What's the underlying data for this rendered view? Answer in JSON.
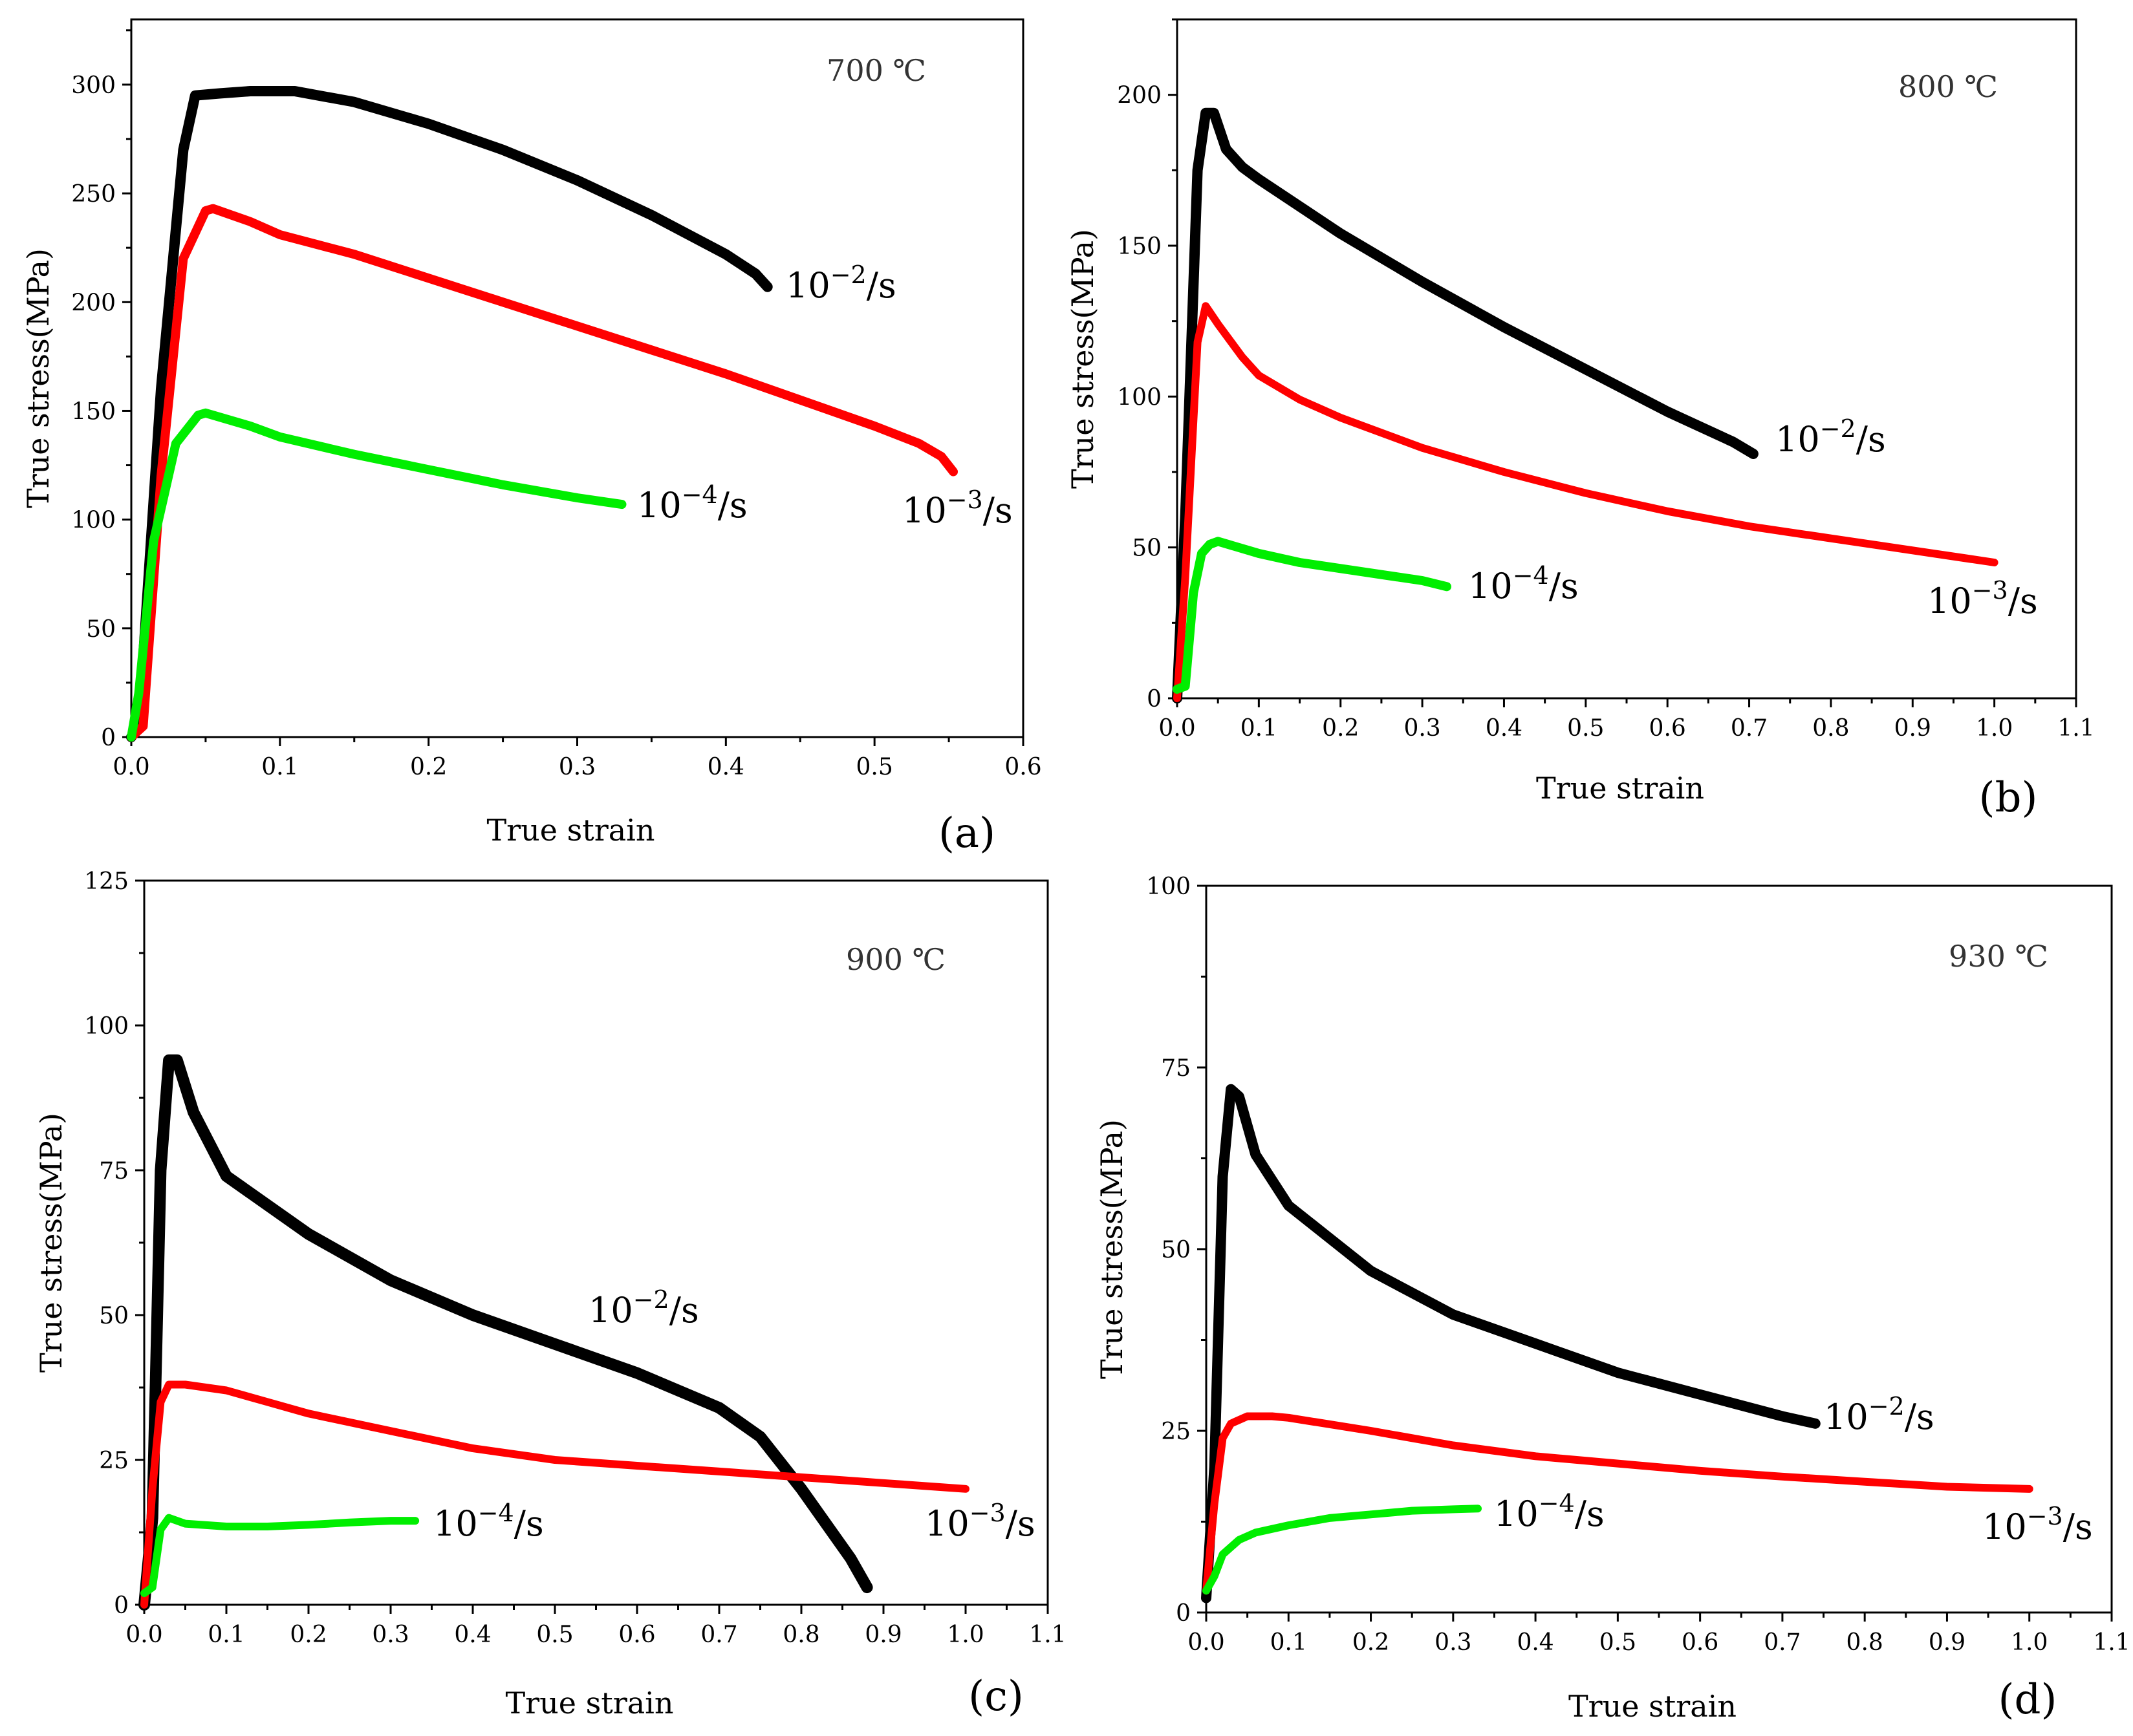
{
  "chart_data": [
    {
      "type": "line",
      "panel_letter": "(a)",
      "temperature_label": "700 ℃",
      "xlabel": "True strain",
      "ylabel": "True stress(MPa)",
      "xlim": [
        0,
        0.6
      ],
      "ylim": [
        0,
        330
      ],
      "xticks": [
        "0.0",
        "0.1",
        "0.2",
        "0.3",
        "0.4",
        "0.5",
        "0.6"
      ],
      "yticks": [
        "0",
        "50",
        "100",
        "150",
        "200",
        "250",
        "300"
      ],
      "series": [
        {
          "label": "10⁻²/s",
          "color": "#000000",
          "x": [
            0,
            0.005,
            0.02,
            0.035,
            0.043,
            0.06,
            0.08,
            0.11,
            0.15,
            0.2,
            0.25,
            0.3,
            0.35,
            0.4,
            0.42,
            0.428
          ],
          "y": [
            0,
            5,
            160,
            270,
            295,
            296,
            297,
            297,
            292,
            282,
            270,
            256,
            240,
            222,
            213,
            207
          ]
        },
        {
          "label": "10⁻³/s",
          "color": "#ff0000",
          "x": [
            0,
            0.008,
            0.02,
            0.035,
            0.05,
            0.055,
            0.08,
            0.1,
            0.15,
            0.2,
            0.25,
            0.3,
            0.35,
            0.4,
            0.45,
            0.5,
            0.53,
            0.545,
            0.553
          ],
          "y": [
            0,
            5,
            120,
            220,
            242,
            243,
            237,
            231,
            222,
            211,
            200,
            189,
            178,
            167,
            155,
            143,
            135,
            129,
            122
          ]
        },
        {
          "label": "10⁻⁴/s",
          "color": "#00ee00",
          "x": [
            0,
            0.005,
            0.015,
            0.03,
            0.045,
            0.05,
            0.08,
            0.1,
            0.15,
            0.2,
            0.25,
            0.3,
            0.33
          ],
          "y": [
            0,
            20,
            90,
            135,
            148,
            149,
            143,
            138,
            130,
            123,
            116,
            110,
            107
          ]
        }
      ]
    },
    {
      "type": "line",
      "panel_letter": "(b)",
      "temperature_label": "800 ℃",
      "xlabel": "True strain",
      "ylabel": "True stress(MPa)",
      "xlim": [
        0,
        1.1
      ],
      "ylim": [
        0,
        225
      ],
      "xticks": [
        "0.0",
        "0.1",
        "0.2",
        "0.3",
        "0.4",
        "0.5",
        "0.6",
        "0.7",
        "0.8",
        "0.9",
        "1.0",
        "1.1"
      ],
      "yticks": [
        "0",
        "50",
        "100",
        "150",
        "200"
      ],
      "series": [
        {
          "label": "10⁻²/s",
          "color": "#000000",
          "x": [
            0,
            0.01,
            0.025,
            0.035,
            0.045,
            0.06,
            0.08,
            0.1,
            0.2,
            0.3,
            0.4,
            0.5,
            0.6,
            0.68,
            0.705
          ],
          "y": [
            0,
            60,
            175,
            194,
            194,
            182,
            176,
            172,
            154,
            138,
            123,
            109,
            95,
            85,
            81
          ]
        },
        {
          "label": "10⁻³/s",
          "color": "#ff0000",
          "x": [
            0,
            0.01,
            0.025,
            0.035,
            0.05,
            0.08,
            0.1,
            0.15,
            0.2,
            0.3,
            0.4,
            0.5,
            0.6,
            0.7,
            0.8,
            0.9,
            1.0
          ],
          "y": [
            0,
            40,
            118,
            130,
            124,
            113,
            107,
            99,
            93,
            83,
            75,
            68,
            62,
            57,
            53,
            49,
            45
          ]
        },
        {
          "label": "10⁻⁴/s",
          "color": "#00ee00",
          "x": [
            0,
            0.01,
            0.02,
            0.03,
            0.04,
            0.05,
            0.1,
            0.15,
            0.2,
            0.25,
            0.3,
            0.33
          ],
          "y": [
            3,
            4,
            35,
            48,
            51,
            52,
            48,
            45,
            43,
            41,
            39,
            37
          ]
        }
      ]
    },
    {
      "type": "line",
      "panel_letter": "(c)",
      "temperature_label": "900 ℃",
      "xlabel": "True strain",
      "ylabel": "True stress(MPa)",
      "xlim": [
        0,
        1.1
      ],
      "ylim": [
        0,
        125
      ],
      "xticks": [
        "0.0",
        "0.1",
        "0.2",
        "0.3",
        "0.4",
        "0.5",
        "0.6",
        "0.7",
        "0.8",
        "0.9",
        "1.0",
        "1.1"
      ],
      "yticks": [
        "0",
        "25",
        "50",
        "75",
        "100",
        "125"
      ],
      "series": [
        {
          "label": "10⁻²/s",
          "color": "#000000",
          "x": [
            0,
            0.01,
            0.02,
            0.03,
            0.04,
            0.06,
            0.1,
            0.2,
            0.3,
            0.4,
            0.5,
            0.6,
            0.7,
            0.75,
            0.8,
            0.83,
            0.86,
            0.88
          ],
          "y": [
            0,
            15,
            75,
            94,
            94,
            85,
            74,
            64,
            56,
            50,
            45,
            40,
            34,
            29,
            20,
            14,
            8,
            3
          ]
        },
        {
          "label": "10⁻³/s",
          "color": "#ff0000",
          "x": [
            0,
            0.01,
            0.02,
            0.03,
            0.05,
            0.1,
            0.15,
            0.2,
            0.3,
            0.4,
            0.5,
            0.6,
            0.7,
            0.8,
            0.9,
            1.0
          ],
          "y": [
            0,
            20,
            35,
            38,
            38,
            37,
            35,
            33,
            30,
            27,
            25,
            24,
            23,
            22,
            21,
            20
          ]
        },
        {
          "label": "10⁻⁴/s",
          "color": "#00ee00",
          "x": [
            0,
            0.01,
            0.02,
            0.03,
            0.05,
            0.1,
            0.15,
            0.2,
            0.25,
            0.3,
            0.33
          ],
          "y": [
            2,
            3,
            13,
            15,
            14,
            13.5,
            13.5,
            13.8,
            14.2,
            14.5,
            14.5
          ]
        }
      ]
    },
    {
      "type": "line",
      "panel_letter": "(d)",
      "temperature_label": "930 ℃",
      "xlabel": "True strain",
      "ylabel": "True stress(MPa)",
      "xlim": [
        0,
        1.1
      ],
      "ylim": [
        0,
        100
      ],
      "xticks": [
        "0.0",
        "0.1",
        "0.2",
        "0.3",
        "0.4",
        "0.5",
        "0.6",
        "0.7",
        "0.8",
        "0.9",
        "1.0",
        "1.1"
      ],
      "yticks": [
        "0",
        "25",
        "50",
        "75",
        "100"
      ],
      "series": [
        {
          "label": "10⁻²/s",
          "color": "#000000",
          "x": [
            0,
            0.01,
            0.02,
            0.03,
            0.04,
            0.06,
            0.1,
            0.2,
            0.3,
            0.4,
            0.5,
            0.6,
            0.7,
            0.74
          ],
          "y": [
            2,
            20,
            60,
            72,
            71,
            63,
            56,
            47,
            41,
            37,
            33,
            30,
            27,
            26
          ]
        },
        {
          "label": "10⁻³/s",
          "color": "#ff0000",
          "x": [
            0,
            0.01,
            0.02,
            0.03,
            0.05,
            0.08,
            0.1,
            0.2,
            0.3,
            0.4,
            0.5,
            0.6,
            0.7,
            0.8,
            0.9,
            1.0
          ],
          "y": [
            3,
            15,
            24,
            26,
            27,
            27,
            26.8,
            25,
            23,
            21.5,
            20.5,
            19.5,
            18.7,
            18,
            17.3,
            17
          ]
        },
        {
          "label": "10⁻⁴/s",
          "color": "#00ee00",
          "x": [
            0,
            0.01,
            0.02,
            0.04,
            0.06,
            0.1,
            0.15,
            0.2,
            0.25,
            0.3,
            0.33
          ],
          "y": [
            3,
            5,
            8,
            10,
            11,
            12,
            13,
            13.5,
            14,
            14.2,
            14.3
          ]
        }
      ]
    }
  ]
}
